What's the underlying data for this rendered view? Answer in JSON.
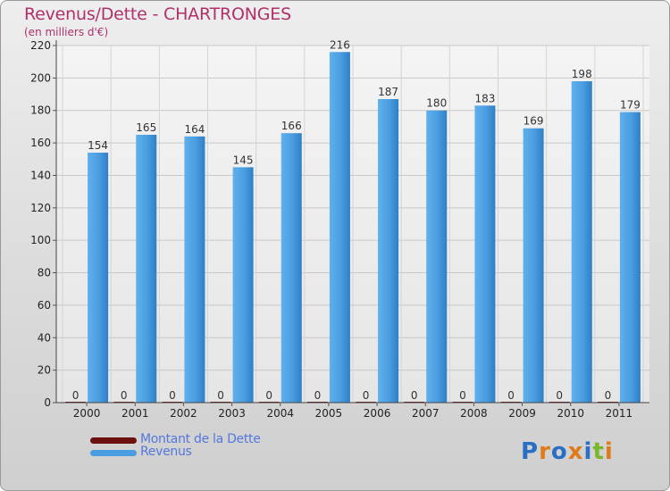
{
  "header": {
    "title": "Revenus/Dette - CHARTRONGES",
    "subtitle": "(en milliers d'€)"
  },
  "legend": {
    "items": [
      {
        "label": "Montant de la Dette",
        "color": "#6b0f0f"
      },
      {
        "label": "Revenus",
        "color": "#4a9de0"
      }
    ]
  },
  "logo": {
    "text": "Proxiti",
    "letter_colors": [
      "#2a6fc4",
      "#e07a1a",
      "#2a6fc4",
      "#e07a1a",
      "#2a6fc4",
      "#7ab62a",
      "#e07a1a"
    ]
  },
  "chart_data": {
    "type": "bar",
    "categories": [
      "2000",
      "2001",
      "2002",
      "2003",
      "2004",
      "2005",
      "2006",
      "2007",
      "2008",
      "2009",
      "2010",
      "2011"
    ],
    "series": [
      {
        "name": "Montant de la Dette",
        "color": "#6b0f0f",
        "values": [
          0,
          0,
          0,
          0,
          0,
          0,
          0,
          0,
          0,
          0,
          0,
          0
        ]
      },
      {
        "name": "Revenus",
        "color": "#4a9de0",
        "values": [
          154,
          165,
          164,
          145,
          166,
          216,
          187,
          180,
          183,
          169,
          198,
          179
        ]
      }
    ],
    "title": "Revenus/Dette - CHARTRONGES",
    "ylabel": "(en milliers d'€)",
    "xlabel": "",
    "ylim": [
      0,
      220
    ],
    "yticks": [
      0,
      20,
      40,
      60,
      80,
      100,
      120,
      140,
      160,
      180,
      200,
      220
    ],
    "grid": true,
    "legend_position": "bottom-left"
  }
}
